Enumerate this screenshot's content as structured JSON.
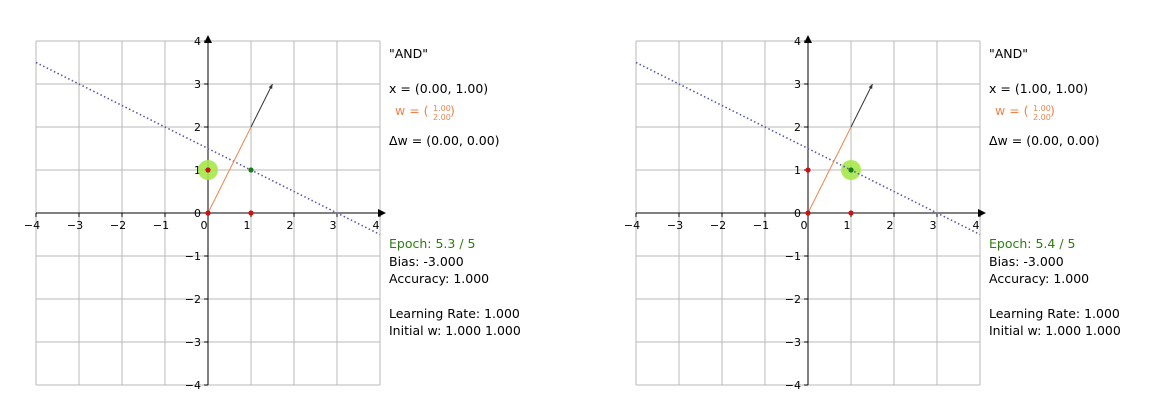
{
  "chart_data": [
    {
      "type": "scatter",
      "title": "\"AND\"",
      "xlim": [
        -4,
        4
      ],
      "ylim": [
        -4,
        4
      ],
      "grid": true,
      "xticks": [
        -4,
        -3,
        -2,
        -1,
        0,
        1,
        2,
        3,
        4
      ],
      "yticks": [
        -4,
        -3,
        -2,
        -1,
        0,
        1,
        2,
        3,
        4
      ],
      "xtick_labels": [
        "−4",
        "−3",
        "−2",
        "−1",
        "0",
        "1",
        "2",
        "3",
        "4"
      ],
      "ytick_labels": [
        "−4",
        "−3",
        "−2",
        "−1",
        "0",
        "1",
        "2",
        "3",
        "4"
      ],
      "points": [
        {
          "x": 0,
          "y": 0,
          "label": 0
        },
        {
          "x": 1,
          "y": 0,
          "label": 0
        },
        {
          "x": 0,
          "y": 1,
          "label": 0
        },
        {
          "x": 1,
          "y": 1,
          "label": 1
        }
      ],
      "highlight": {
        "x": 0,
        "y": 1
      },
      "decision_boundary": {
        "from": [
          -4,
          3.5
        ],
        "to": [
          4,
          -0.5
        ]
      },
      "weight_vector": {
        "x": 1.0,
        "y": 2.0
      },
      "normal_arrow": {
        "from": [
          1.0,
          2.0
        ],
        "to": [
          1.5,
          3.0
        ]
      },
      "labels": {
        "title": "\"AND\"",
        "x_line": "x = (0.00, 1.00)",
        "w_prefix": "w = (",
        "w_top": "1.00",
        "w_bottom": "2.00",
        "w_suffix": ")",
        "dw_line": "Δw = (0.00, 0.00)",
        "epoch": "Epoch: 5.3 / 5",
        "bias": "Bias: -3.000",
        "accuracy": "Accuracy: 1.000",
        "learning_rate": "Learning Rate: 1.000",
        "initial_w": "Initial w: 1.000  1.000"
      }
    },
    {
      "type": "scatter",
      "title": "\"AND\"",
      "xlim": [
        -4,
        4
      ],
      "ylim": [
        -4,
        4
      ],
      "grid": true,
      "xticks": [
        -4,
        -3,
        -2,
        -1,
        0,
        1,
        2,
        3,
        4
      ],
      "yticks": [
        -4,
        -3,
        -2,
        -1,
        0,
        1,
        2,
        3,
        4
      ],
      "xtick_labels": [
        "−4",
        "−3",
        "−2",
        "−1",
        "0",
        "1",
        "2",
        "3",
        "4"
      ],
      "ytick_labels": [
        "−4",
        "−3",
        "−2",
        "−1",
        "0",
        "1",
        "2",
        "3",
        "4"
      ],
      "points": [
        {
          "x": 0,
          "y": 0,
          "label": 0
        },
        {
          "x": 1,
          "y": 0,
          "label": 0
        },
        {
          "x": 0,
          "y": 1,
          "label": 0
        },
        {
          "x": 1,
          "y": 1,
          "label": 1
        }
      ],
      "highlight": {
        "x": 1,
        "y": 1
      },
      "decision_boundary": {
        "from": [
          -4,
          3.5
        ],
        "to": [
          4,
          -0.5
        ]
      },
      "weight_vector": {
        "x": 1.0,
        "y": 2.0
      },
      "normal_arrow": {
        "from": [
          1.0,
          2.0
        ],
        "to": [
          1.5,
          3.0
        ]
      },
      "labels": {
        "title": "\"AND\"",
        "x_line": "x = (1.00, 1.00)",
        "w_prefix": "w = (",
        "w_top": "1.00",
        "w_bottom": "2.00",
        "w_suffix": ")",
        "dw_line": "Δw = (0.00, 0.00)",
        "epoch": "Epoch: 5.4 / 5",
        "bias": "Bias: -3.000",
        "accuracy": "Accuracy: 1.000",
        "learning_rate": "Learning Rate: 1.000",
        "initial_w": "Initial w: 1.000  1.000"
      }
    }
  ],
  "colors": {
    "grid": "#b9b9b9",
    "axis": "#000000",
    "boundary": "#5a5aa8",
    "weight": "#f0834c",
    "arrow": "#333333",
    "class0": "#cc1111",
    "class1": "#1a7a1a",
    "highlight": "#a6e84a",
    "epoch_text": "#2e7d10"
  }
}
